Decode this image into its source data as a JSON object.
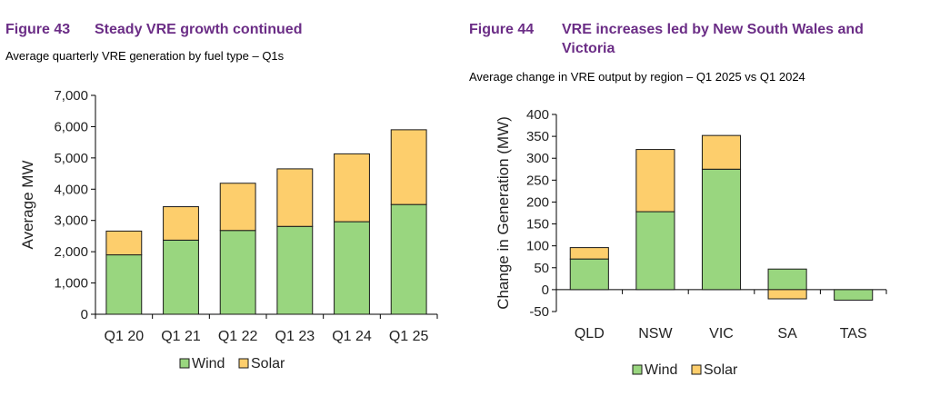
{
  "figures": [
    {
      "number": "Figure 43",
      "title": "Steady VRE growth continued",
      "subtitle": "Average quarterly VRE generation by fuel type – Q1s"
    },
    {
      "number": "Figure 44",
      "title_line1": "VRE increases led by New South Wales and",
      "title_line2": "Victoria",
      "subtitle": "Average change in VRE output by region – Q1 2025 vs Q1 2024"
    }
  ],
  "colors": {
    "wind": "#99d67f",
    "solar": "#fdce6c",
    "outline": "#1a1a1a",
    "title": "#6b2d86"
  },
  "chart_data": [
    {
      "type": "bar",
      "stacked": true,
      "categories": [
        "Q1 20",
        "Q1 21",
        "Q1 22",
        "Q1 23",
        "Q1 24",
        "Q1 25"
      ],
      "series": [
        {
          "name": "Wind",
          "values": [
            1900,
            2370,
            2680,
            2810,
            2960,
            3510
          ]
        },
        {
          "name": "Solar",
          "values": [
            760,
            1070,
            1510,
            1840,
            2170,
            2390
          ]
        }
      ],
      "ylabel": "Average MW",
      "xlabel": "",
      "ylim": [
        0,
        7000
      ],
      "yticks": [
        "0",
        "1,000",
        "2,000",
        "3,000",
        "4,000",
        "5,000",
        "6,000",
        "7,000"
      ],
      "grid": false,
      "legend": "bottom"
    },
    {
      "type": "bar",
      "stacked": true,
      "categories": [
        "QLD",
        "NSW",
        "VIC",
        "SA",
        "TAS"
      ],
      "series": [
        {
          "name": "Wind",
          "values": [
            70,
            178,
            275,
            47,
            -24
          ]
        },
        {
          "name": "Solar",
          "values": [
            26,
            142,
            77,
            -21,
            0
          ]
        }
      ],
      "ylabel": "Change in Generation (MW)",
      "xlabel": "",
      "ylim": [
        -50,
        400
      ],
      "yticks": [
        "-50",
        "0",
        "50",
        "100",
        "150",
        "200",
        "250",
        "300",
        "350",
        "400"
      ],
      "grid": false,
      "legend": "bottom"
    }
  ]
}
